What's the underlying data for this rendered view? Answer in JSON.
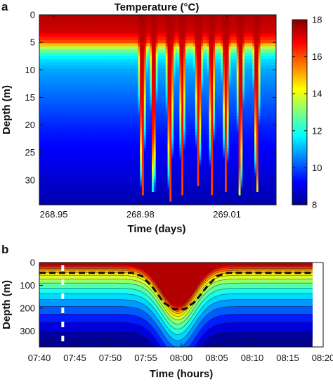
{
  "chart_data": [
    {
      "type": "heatmap",
      "panel_label": "a",
      "title": "Temperature (°C)",
      "xlabel": "Time (days)",
      "ylabel": "Depth (m)",
      "xlim": [
        268.945,
        269.027
      ],
      "ylim": [
        34.5,
        0
      ],
      "xticks": [
        268.95,
        268.98,
        269.01
      ],
      "xtick_labels": [
        "268.95",
        "268.98",
        "269.01"
      ],
      "yticks": [
        0,
        5,
        10,
        15,
        20,
        25,
        30
      ],
      "ytick_labels": [
        "0",
        "5",
        "10",
        "15",
        "20",
        "25",
        "30"
      ],
      "color_scale": {
        "range": [
          8,
          18
        ],
        "ticks": [
          8,
          10,
          12,
          14,
          16,
          18
        ],
        "tick_labels": [
          "8",
          "10",
          "12",
          "14",
          "16",
          "18"
        ],
        "colormap": "jet"
      },
      "background_profile": {
        "depth_m": [
          0,
          3,
          5,
          6,
          7,
          8,
          10,
          13,
          17,
          21,
          26,
          31,
          34
        ],
        "temperature_c": [
          17.5,
          17.2,
          16.0,
          13.5,
          12.2,
          11.5,
          10.9,
          10.5,
          10.0,
          9.5,
          9.1,
          8.7,
          8.5
        ]
      },
      "warm_intrusions": {
        "time_days": [
          268.9807,
          268.9846,
          268.9903,
          268.9945,
          269.0001,
          269.0047,
          269.0096,
          269.0146,
          269.0203
        ],
        "max_depth_m": [
          32,
          31,
          33,
          32,
          30,
          32,
          31,
          32,
          31
        ],
        "half_width_days": [
          0.0017,
          0.0014,
          0.0017,
          0.0014,
          0.0016,
          0.0014,
          0.0016,
          0.0015,
          0.0014
        ]
      }
    },
    {
      "type": "heatmap",
      "panel_label": "b",
      "xlabel": "Time (hours)",
      "ylabel": "Depth (m)",
      "xlim": [
        460,
        500
      ],
      "ylim": [
        370,
        0
      ],
      "xticks": [
        460,
        465,
        470,
        475,
        480,
        485,
        490,
        495,
        500
      ],
      "xtick_labels": [
        "07:40",
        "07:45",
        "07:50",
        "07:55",
        "08:00",
        "08:05",
        "08:10",
        "08:15",
        "08:20"
      ],
      "yticks": [
        0,
        100,
        200,
        300
      ],
      "ytick_labels": [
        "0",
        "100",
        "200",
        "300"
      ],
      "data_end_x": 498.5,
      "isotherm_depths_m": [
        10,
        18,
        26,
        34,
        44,
        56,
        72,
        90,
        112,
        136,
        162,
        192,
        226,
        262,
        300,
        340
      ],
      "dashed_curve": {
        "x": [
          460,
          473,
          474.5,
          476,
          477.5,
          479,
          480.5,
          482,
          483.5,
          485,
          486.5,
          488,
          498.5
        ],
        "depth_m": [
          45,
          45,
          60,
          110,
          175,
          205,
          205,
          170,
          110,
          60,
          45,
          45,
          45
        ]
      },
      "depression": {
        "center_x": 479.5,
        "sigma_x": 3.3,
        "amplitude_m": 180
      }
    }
  ]
}
